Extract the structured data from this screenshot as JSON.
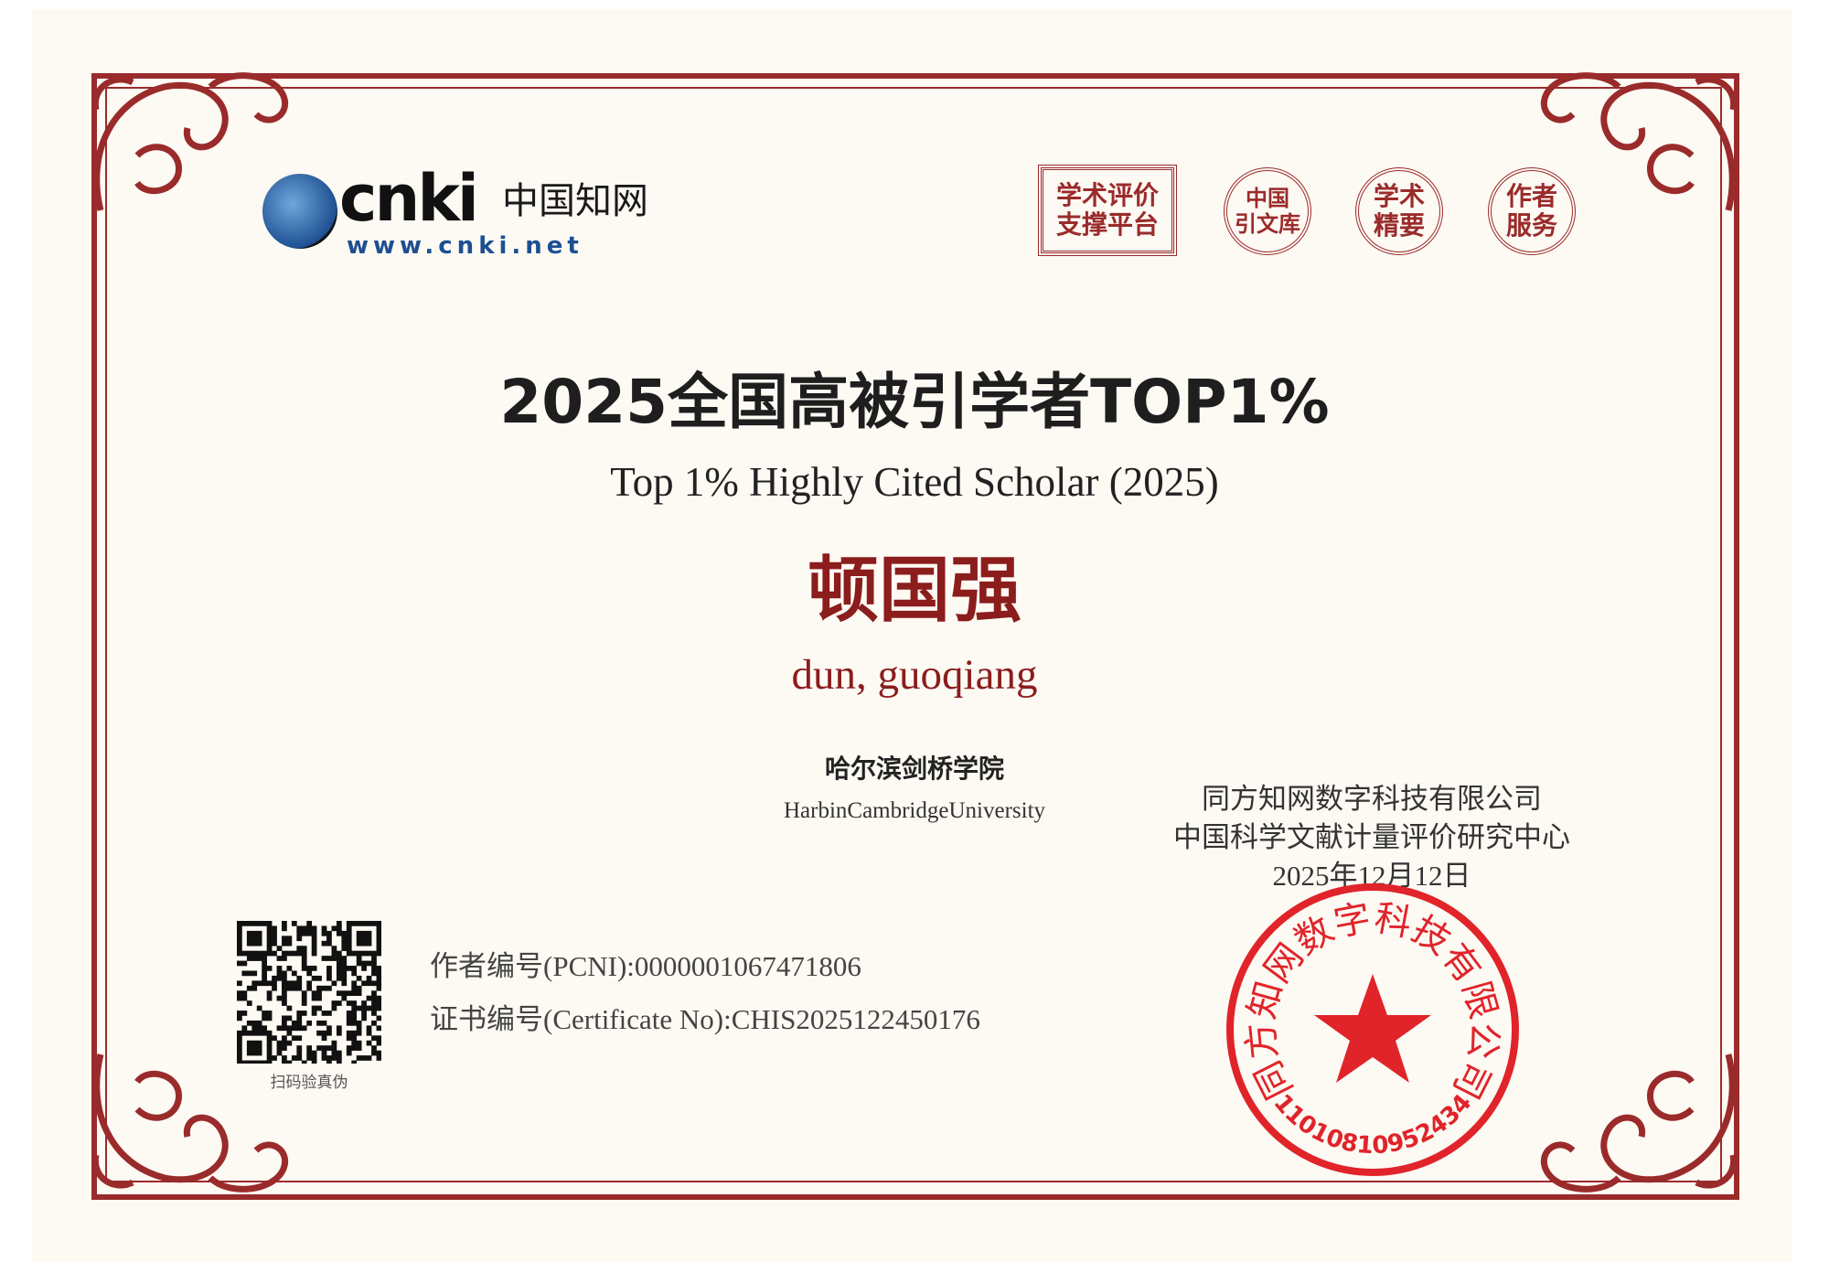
{
  "logo": {
    "brand": "cnki",
    "chinese": "中国知网",
    "url": "www.cnki.net"
  },
  "badges": [
    {
      "line1": "学术评价",
      "line2": "支撑平台"
    },
    {
      "line1": "中国",
      "line2": "引文库"
    },
    {
      "line1": "学术",
      "line2": "精要"
    },
    {
      "line1": "作者",
      "line2": "服务"
    }
  ],
  "title": "2025全国高被引学者TOP1%",
  "subtitle": "Top 1% Highly Cited Scholar (2025)",
  "recipient": {
    "name_cn": "顿国强",
    "name_en": "dun, guoqiang"
  },
  "institution": {
    "cn": "哈尔滨剑桥学院",
    "en": "HarbinCambridgeUniversity"
  },
  "qr": {
    "caption": "扫码验真伪"
  },
  "author_id": "作者编号(PCNI):0000001067471806",
  "certificate_no": "证书编号(Certificate No):CHIS2025122450176",
  "issuer": {
    "line1": "同方知网数字科技有限公司",
    "line2": "中国科学文献计量评价研究中心",
    "date": "2025年12月12日"
  },
  "seal": {
    "text": "同方知网数字科技有限公司",
    "number": "1101081095243​4"
  },
  "colors": {
    "border": "#9a2b2b",
    "name": "#8b1d1d",
    "seal": "#e0242a",
    "background": "#fdf9f3"
  }
}
